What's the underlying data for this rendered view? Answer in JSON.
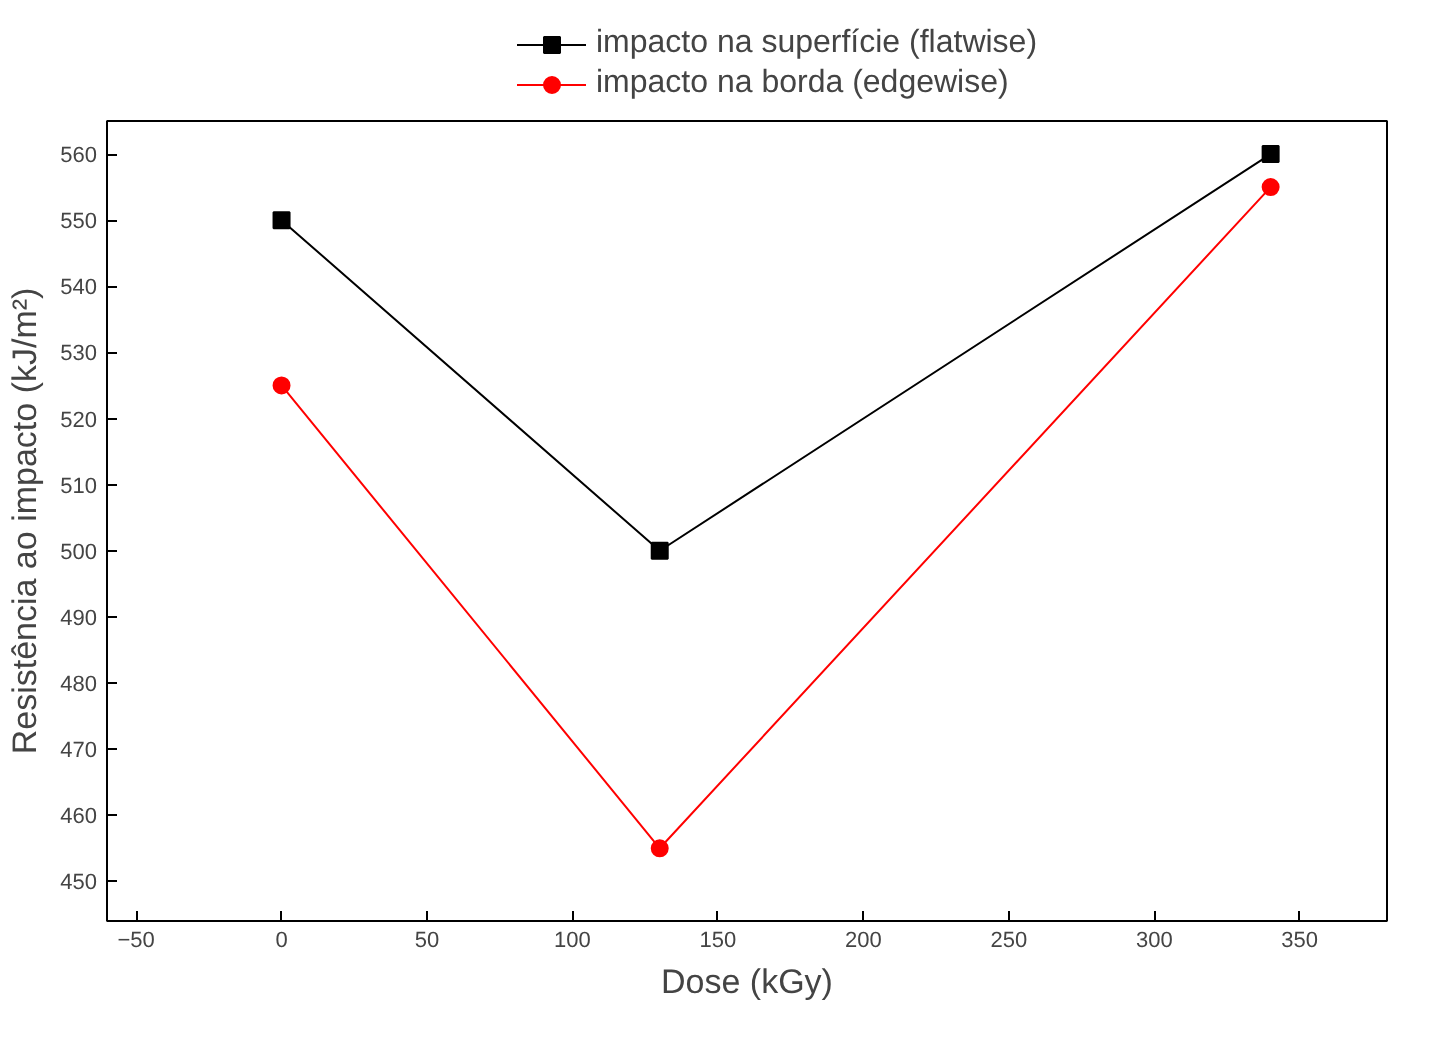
{
  "chart_data": {
    "type": "line",
    "xlabel": "Dose (kGy)",
    "ylabel": "Resistência ao impacto (kJ/m²)",
    "x": [
      0,
      130,
      340
    ],
    "series": [
      {
        "name": "impacto na superfície (flatwise)",
        "color": "#000000",
        "values": [
          550,
          500,
          560
        ],
        "marker": "square"
      },
      {
        "name": "impacto na borda (edgewise)",
        "color": "#ff0000",
        "values": [
          525,
          455,
          555
        ],
        "marker": "circle"
      }
    ],
    "xlim": [
      -60,
      380
    ],
    "xticks": [
      -50,
      0,
      50,
      100,
      150,
      200,
      250,
      300,
      350
    ],
    "ylim": [
      444,
      565
    ],
    "yticks": [
      450,
      460,
      470,
      480,
      490,
      500,
      510,
      520,
      530,
      540,
      550,
      560
    ],
    "grid": false,
    "legend": "top",
    "line_style": "solid"
  }
}
